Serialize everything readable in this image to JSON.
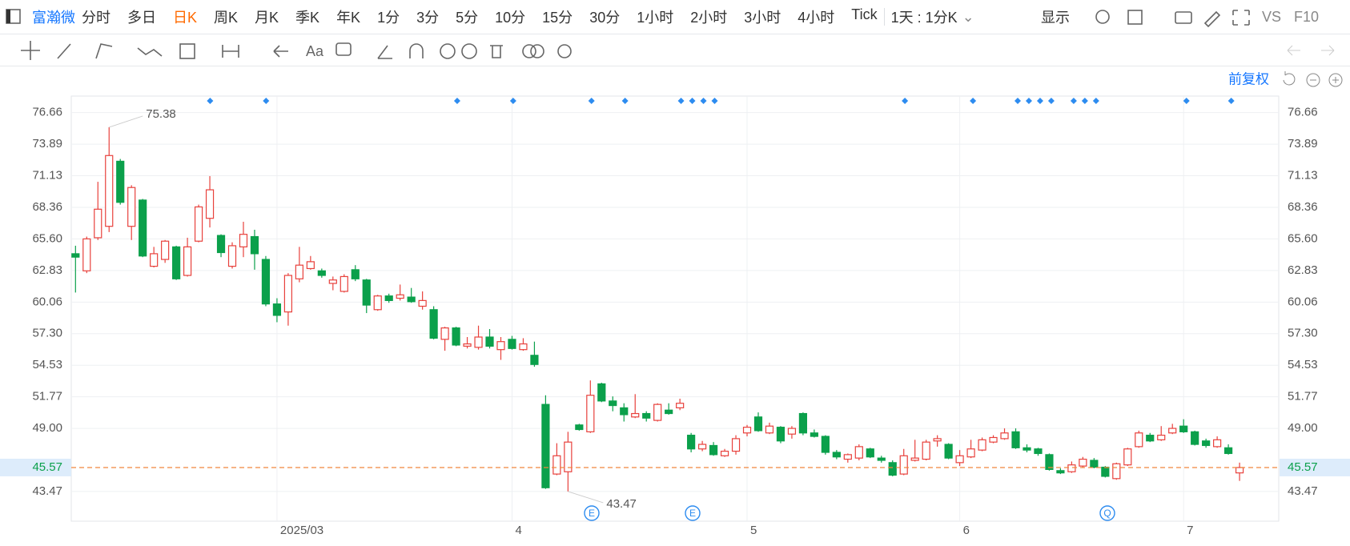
{
  "toolbar": {
    "stock": "富瀚微",
    "periods": [
      "分时",
      "多日",
      "日K",
      "周K",
      "月K",
      "季K",
      "年K",
      "1分",
      "3分",
      "5分",
      "10分",
      "15分",
      "30分",
      "1小时",
      "2小时",
      "3小时",
      "4小时",
      "Tick"
    ],
    "active_period": 2,
    "interval": "1天 : 1分K",
    "display": "显示",
    "vs": "VS",
    "f10": "F10"
  },
  "drawing_tools": {
    "text_tool": "Aa"
  },
  "adjust": "前复权",
  "chart_data": {
    "type": "candlestick",
    "up_color": "#e8413c",
    "down_color": "#0ba04b",
    "open": [
      64.3,
      62.8,
      65.7,
      66.7,
      72.4,
      66.7,
      69.0,
      63.2,
      63.8,
      64.9,
      62.4,
      65.4,
      67.4,
      65.9,
      63.2,
      64.9,
      65.8,
      63.8,
      59.9,
      59.2,
      62.1,
      63.0,
      62.8,
      61.7,
      61.0,
      62.9,
      62.0,
      59.4,
      60.6,
      60.4,
      60.5,
      59.7,
      59.4,
      56.8,
      57.8,
      56.2,
      56.1,
      57.0,
      55.9,
      56.8,
      55.9,
      55.4,
      51.1,
      45.0,
      45.2,
      49.3,
      48.7,
      52.9,
      51.4,
      50.8,
      50.0,
      50.3,
      49.7,
      50.6,
      50.8,
      48.4,
      47.2,
      47.5,
      46.6,
      47.0,
      48.6,
      50.0,
      48.6,
      49.1,
      48.5,
      50.3,
      48.6,
      48.3,
      46.9,
      46.3,
      46.4,
      47.2,
      46.4,
      46.0,
      45.0,
      46.2,
      46.3,
      47.9,
      47.6,
      46.0,
      46.5,
      47.1,
      47.8,
      48.1,
      48.7,
      47.3,
      47.2,
      46.7,
      45.3,
      45.2,
      45.7,
      46.2,
      45.6,
      44.6,
      45.8,
      47.4,
      48.4,
      48.0,
      48.6,
      49.2,
      48.7,
      47.9,
      47.4,
      47.3,
      45.1
    ],
    "high": [
      65.0,
      65.8,
      70.6,
      75.38,
      72.6,
      70.3,
      69.1,
      64.9,
      65.5,
      65.0,
      65.7,
      68.6,
      71.1,
      66.0,
      65.3,
      67.1,
      66.4,
      64.1,
      60.4,
      62.6,
      64.9,
      64.1,
      63.0,
      62.3,
      62.5,
      63.3,
      62.1,
      60.7,
      60.8,
      61.6,
      61.3,
      61.0,
      59.7,
      57.9,
      57.9,
      57.0,
      58.0,
      57.7,
      57.0,
      57.1,
      56.9,
      56.6,
      51.9,
      47.7,
      48.7,
      49.4,
      53.2,
      53.0,
      51.8,
      51.2,
      52.0,
      50.5,
      51.2,
      51.2,
      51.6,
      48.6,
      47.9,
      47.8,
      47.2,
      48.4,
      49.3,
      50.4,
      49.5,
      49.2,
      49.2,
      50.4,
      48.9,
      48.4,
      47.1,
      46.8,
      47.6,
      47.3,
      46.6,
      46.2,
      47.2,
      48.0,
      48.0,
      48.4,
      47.7,
      47.1,
      48.0,
      48.2,
      48.4,
      49.0,
      49.0,
      47.6,
      47.3,
      46.8,
      45.5,
      46.1,
      46.5,
      46.4,
      45.7,
      46.0,
      47.3,
      48.8,
      48.6,
      49.2,
      49.4,
      49.8,
      48.8,
      48.1,
      48.3,
      47.6,
      46.0
    ],
    "low": [
      60.9,
      62.6,
      65.5,
      66.2,
      68.6,
      65.5,
      64.0,
      63.1,
      63.5,
      62.0,
      62.3,
      65.3,
      66.6,
      64.0,
      63.0,
      64.0,
      62.9,
      59.7,
      58.3,
      58.0,
      61.8,
      62.9,
      62.2,
      61.1,
      60.9,
      61.9,
      59.1,
      59.3,
      60.0,
      60.2,
      60.0,
      59.4,
      56.8,
      55.8,
      56.2,
      56.0,
      55.9,
      56.0,
      55.0,
      55.9,
      55.8,
      54.4,
      43.7,
      44.9,
      43.47,
      48.8,
      48.6,
      51.3,
      50.5,
      49.6,
      49.9,
      49.6,
      49.6,
      50.2,
      50.6,
      46.9,
      47.0,
      46.6,
      46.5,
      46.7,
      48.3,
      48.7,
      48.5,
      47.7,
      48.1,
      48.4,
      48.2,
      46.7,
      46.3,
      46.0,
      46.2,
      46.4,
      46.0,
      44.8,
      44.9,
      46.1,
      46.2,
      47.4,
      46.3,
      45.7,
      46.4,
      47.0,
      47.7,
      48.0,
      47.2,
      46.9,
      46.6,
      45.3,
      45.0,
      45.1,
      45.6,
      45.5,
      44.7,
      44.5,
      45.7,
      47.3,
      47.8,
      47.9,
      48.5,
      48.6,
      47.5,
      47.3,
      47.3,
      46.7,
      44.4
    ],
    "close": [
      64.0,
      65.6,
      68.2,
      72.9,
      68.8,
      70.1,
      64.1,
      64.3,
      65.4,
      62.1,
      64.9,
      68.4,
      69.9,
      64.4,
      65.0,
      66.0,
      64.3,
      59.9,
      58.9,
      62.4,
      63.3,
      63.6,
      62.4,
      62.0,
      62.3,
      62.1,
      59.8,
      60.6,
      60.2,
      60.7,
      60.1,
      60.2,
      56.9,
      57.8,
      56.3,
      56.4,
      57.0,
      56.2,
      56.6,
      56.0,
      56.4,
      54.6,
      43.8,
      46.6,
      47.8,
      48.9,
      51.9,
      51.4,
      51.0,
      50.2,
      50.3,
      49.9,
      51.1,
      50.3,
      51.2,
      47.2,
      47.6,
      46.7,
      47.0,
      48.1,
      49.1,
      48.8,
      49.2,
      47.9,
      49.0,
      48.6,
      48.3,
      46.9,
      46.5,
      46.7,
      47.4,
      46.5,
      46.2,
      44.9,
      46.6,
      46.4,
      47.8,
      48.1,
      46.4,
      46.6,
      47.2,
      48.0,
      48.2,
      48.6,
      47.3,
      47.1,
      46.8,
      45.4,
      45.1,
      45.8,
      46.3,
      45.6,
      44.8,
      45.9,
      47.2,
      48.6,
      47.9,
      48.4,
      49.0,
      48.7,
      47.6,
      47.5,
      48.0,
      46.8,
      45.57
    ],
    "max_label": 75.38,
    "min_label": 43.47,
    "last_price": 45.57,
    "events": [
      "E",
      "E",
      "Q"
    ],
    "xlim": [
      -0.38,
      107.5
    ],
    "xticks": [
      {
        "value": 18,
        "label": "2025/03"
      },
      {
        "value": 39,
        "label": "4"
      },
      {
        "value": 60,
        "label": "5"
      },
      {
        "value": 79,
        "label": "6"
      },
      {
        "value": 99,
        "label": "7"
      }
    ],
    "ylim": [
      40.87,
      78.11
    ],
    "yticks": [
      76.66,
      73.89,
      71.13,
      68.36,
      {
        "value": 65.6,
        "label": "65.60"
      },
      62.83,
      60.06,
      {
        "value": 57.3,
        "label": "57.30"
      },
      54.53,
      51.77,
      {
        "value": 49,
        "label": "49.00"
      },
      43.47
    ],
    "grid": true
  }
}
